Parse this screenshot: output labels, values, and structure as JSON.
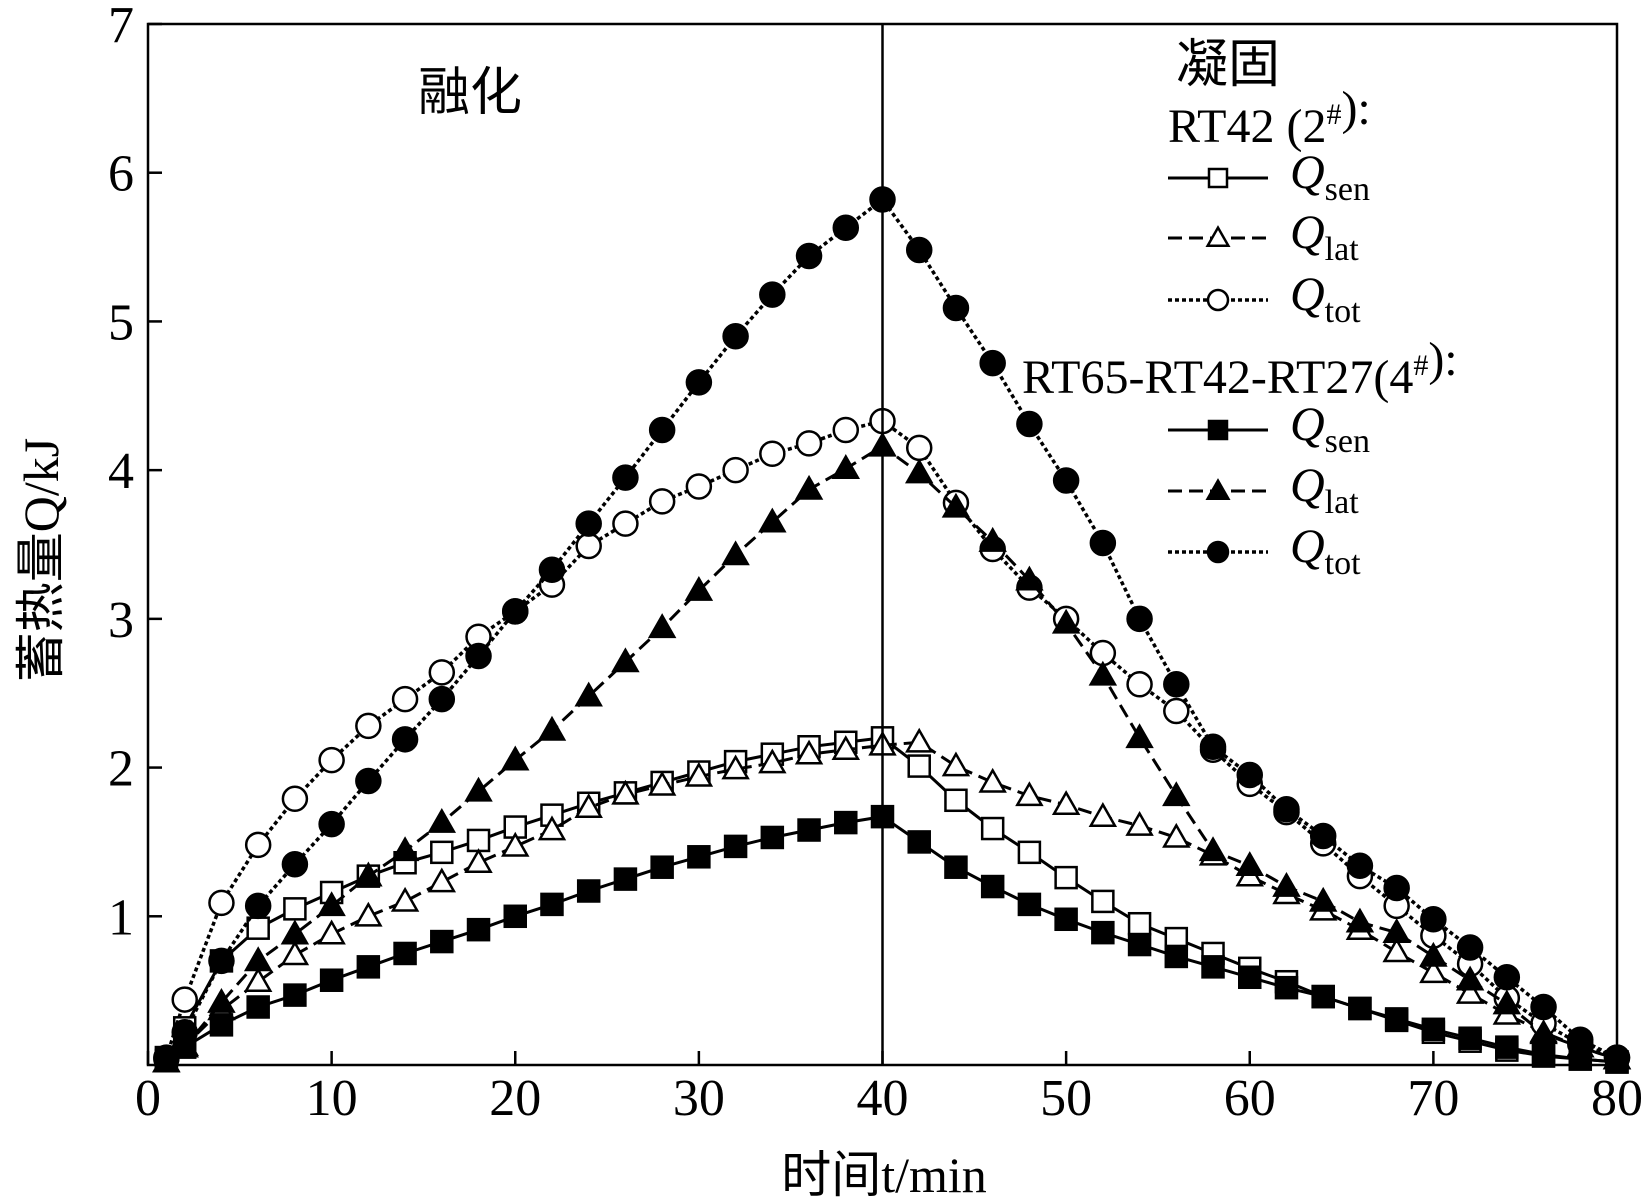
{
  "chart_data": {
    "type": "line",
    "xlabel": "时间t/min",
    "ylabel": "蓄热量Q/kJ",
    "xlim": [
      0,
      80
    ],
    "ylim": [
      0,
      7
    ],
    "xticks": [
      0,
      10,
      20,
      30,
      40,
      50,
      60,
      70,
      80
    ],
    "yticks": [
      1,
      2,
      3,
      4,
      5,
      6,
      7
    ],
    "grid": false,
    "divider_x": 40,
    "annotations": {
      "melting": "融化",
      "solidification": "凝固"
    },
    "legend": {
      "placement": "top-right",
      "groups": [
        {
          "title": "RT42 (2#):",
          "entries": [
            "Qsen",
            "Qlat",
            "Qtot"
          ]
        },
        {
          "title": "RT65-RT42-RT27(4#):",
          "entries": [
            "Qsen",
            "Qlat",
            "Qtot"
          ]
        }
      ]
    },
    "series": [
      {
        "name": "Qsen",
        "group": "RT42 (2#)",
        "marker": "square",
        "filled": false,
        "line": "solid",
        "x": [
          1,
          2,
          4,
          6,
          8,
          10,
          12,
          14,
          16,
          18,
          20,
          22,
          24,
          26,
          28,
          30,
          32,
          34,
          36,
          38,
          40,
          42,
          44,
          46,
          48,
          50,
          52,
          54,
          56,
          58,
          60,
          62,
          64,
          66,
          68,
          70,
          72,
          74,
          76,
          78,
          80
        ],
        "y": [
          0.05,
          0.25,
          0.7,
          0.92,
          1.05,
          1.16,
          1.27,
          1.36,
          1.43,
          1.51,
          1.6,
          1.68,
          1.76,
          1.83,
          1.9,
          1.97,
          2.04,
          2.09,
          2.14,
          2.17,
          2.2,
          2.01,
          1.78,
          1.59,
          1.43,
          1.26,
          1.1,
          0.95,
          0.85,
          0.75,
          0.65,
          0.56,
          0.46,
          0.38,
          0.3,
          0.22,
          0.16,
          0.1,
          0.06,
          0.04,
          0.02
        ]
      },
      {
        "name": "Qlat",
        "group": "RT42 (2#)",
        "marker": "triangle",
        "filled": false,
        "line": "dashed",
        "x": [
          1,
          2,
          4,
          6,
          8,
          10,
          12,
          14,
          16,
          18,
          20,
          22,
          24,
          26,
          28,
          30,
          32,
          34,
          36,
          38,
          40,
          42,
          44,
          46,
          48,
          50,
          52,
          54,
          56,
          58,
          60,
          62,
          64,
          66,
          68,
          70,
          72,
          74,
          76,
          78,
          80
        ],
        "y": [
          0.02,
          0.13,
          0.37,
          0.56,
          0.74,
          0.88,
          1.0,
          1.1,
          1.23,
          1.36,
          1.47,
          1.58,
          1.73,
          1.82,
          1.88,
          1.94,
          1.99,
          2.03,
          2.09,
          2.12,
          2.15,
          2.17,
          2.01,
          1.9,
          1.81,
          1.75,
          1.67,
          1.61,
          1.53,
          1.41,
          1.27,
          1.15,
          1.04,
          0.91,
          0.76,
          0.62,
          0.48,
          0.34,
          0.22,
          0.12,
          0.04
        ]
      },
      {
        "name": "Qtot",
        "group": "RT42 (2#)",
        "marker": "circle",
        "filled": false,
        "line": "dotted",
        "x": [
          1,
          2,
          4,
          6,
          8,
          10,
          12,
          14,
          16,
          18,
          20,
          22,
          24,
          26,
          28,
          30,
          32,
          34,
          36,
          38,
          40,
          42,
          44,
          46,
          48,
          50,
          52,
          54,
          56,
          58,
          60,
          62,
          64,
          66,
          68,
          70,
          72,
          74,
          76,
          78,
          80
        ],
        "y": [
          0.05,
          0.44,
          1.09,
          1.48,
          1.79,
          2.05,
          2.28,
          2.46,
          2.64,
          2.88,
          3.05,
          3.23,
          3.49,
          3.64,
          3.79,
          3.89,
          4.0,
          4.11,
          4.18,
          4.27,
          4.33,
          4.15,
          3.78,
          3.47,
          3.21,
          3.0,
          2.77,
          2.56,
          2.38,
          2.12,
          1.89,
          1.7,
          1.49,
          1.27,
          1.07,
          0.87,
          0.68,
          0.45,
          0.28,
          0.14,
          0.05
        ]
      },
      {
        "name": "Qsen",
        "group": "RT65-RT42-RT27(4#)",
        "marker": "square",
        "filled": true,
        "line": "solid",
        "x": [
          1,
          2,
          4,
          6,
          8,
          10,
          12,
          14,
          16,
          18,
          20,
          22,
          24,
          26,
          28,
          30,
          32,
          34,
          36,
          38,
          40,
          42,
          44,
          46,
          48,
          50,
          52,
          54,
          56,
          58,
          60,
          62,
          64,
          66,
          68,
          70,
          72,
          74,
          76,
          78,
          80
        ],
        "y": [
          0.03,
          0.12,
          0.27,
          0.39,
          0.47,
          0.57,
          0.66,
          0.75,
          0.83,
          0.91,
          1.0,
          1.08,
          1.17,
          1.25,
          1.33,
          1.4,
          1.47,
          1.53,
          1.58,
          1.63,
          1.67,
          1.5,
          1.33,
          1.2,
          1.08,
          0.98,
          0.89,
          0.81,
          0.73,
          0.66,
          0.59,
          0.52,
          0.46,
          0.38,
          0.31,
          0.24,
          0.18,
          0.12,
          0.07,
          0.04,
          0.02
        ]
      },
      {
        "name": "Qlat",
        "group": "RT65-RT42-RT27(4#)",
        "marker": "triangle",
        "filled": true,
        "line": "dashed",
        "x": [
          1,
          2,
          4,
          6,
          8,
          10,
          12,
          14,
          16,
          18,
          20,
          22,
          24,
          26,
          28,
          30,
          32,
          34,
          36,
          38,
          40,
          42,
          44,
          46,
          48,
          50,
          52,
          54,
          56,
          58,
          60,
          62,
          64,
          66,
          68,
          70,
          72,
          74,
          76,
          78,
          80
        ],
        "y": [
          0.02,
          0.12,
          0.42,
          0.7,
          0.88,
          1.07,
          1.27,
          1.44,
          1.63,
          1.84,
          2.05,
          2.25,
          2.48,
          2.71,
          2.94,
          3.19,
          3.43,
          3.65,
          3.87,
          4.01,
          4.16,
          3.98,
          3.75,
          3.52,
          3.26,
          2.97,
          2.62,
          2.2,
          1.81,
          1.44,
          1.34,
          1.2,
          1.1,
          0.96,
          0.89,
          0.73,
          0.57,
          0.41,
          0.21,
          0.12,
          0.04
        ]
      },
      {
        "name": "Qtot",
        "group": "RT65-RT42-RT27(4#)",
        "marker": "circle",
        "filled": true,
        "line": "dotted",
        "x": [
          1,
          2,
          4,
          6,
          8,
          10,
          12,
          14,
          16,
          18,
          20,
          22,
          24,
          26,
          28,
          30,
          32,
          34,
          36,
          38,
          40,
          42,
          44,
          46,
          48,
          50,
          52,
          54,
          56,
          58,
          60,
          62,
          64,
          66,
          68,
          70,
          72,
          74,
          76,
          78,
          80
        ],
        "y": [
          0.04,
          0.22,
          0.7,
          1.07,
          1.35,
          1.62,
          1.91,
          2.19,
          2.46,
          2.75,
          3.05,
          3.33,
          3.64,
          3.95,
          4.27,
          4.59,
          4.9,
          5.18,
          5.44,
          5.63,
          5.82,
          5.48,
          5.09,
          4.72,
          4.31,
          3.93,
          3.51,
          3.0,
          2.56,
          2.14,
          1.95,
          1.72,
          1.54,
          1.34,
          1.19,
          0.98,
          0.79,
          0.59,
          0.39,
          0.17,
          0.05
        ]
      }
    ]
  }
}
